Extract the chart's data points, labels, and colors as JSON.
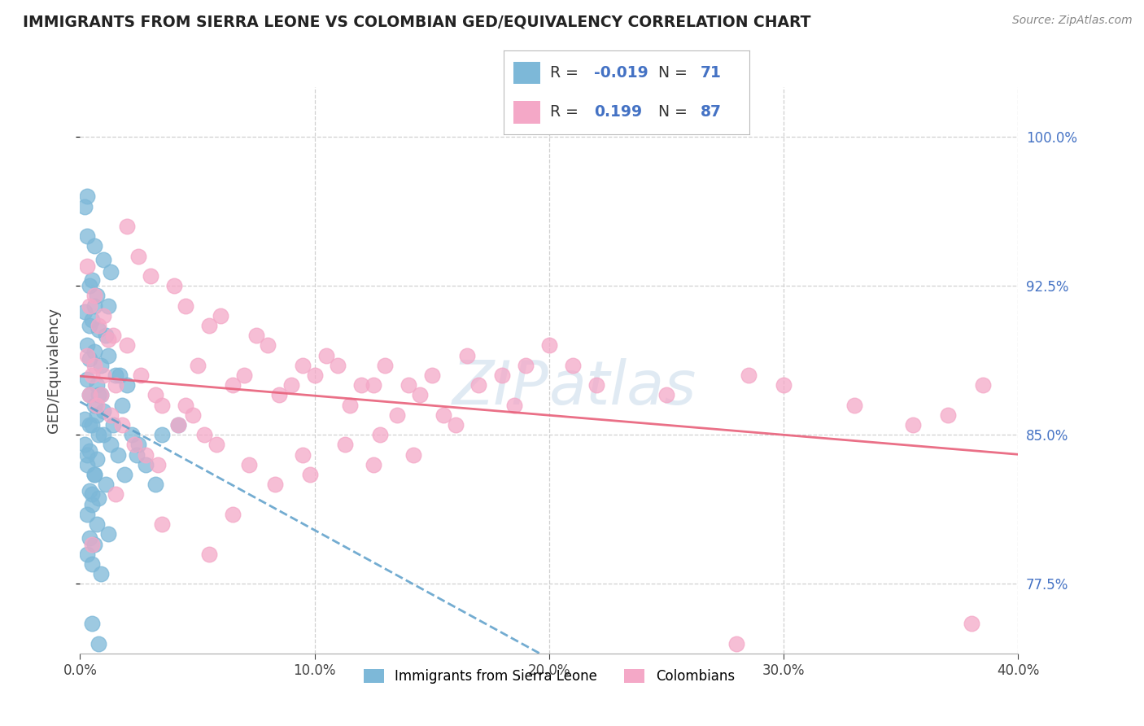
{
  "title": "IMMIGRANTS FROM SIERRA LEONE VS COLOMBIAN GED/EQUIVALENCY CORRELATION CHART",
  "source": "Source: ZipAtlas.com",
  "ylabel": "GED/Equivalency",
  "x_min": 0.0,
  "x_max": 40.0,
  "y_min": 74.0,
  "y_max": 102.5,
  "y_ticks": [
    77.5,
    85.0,
    92.5,
    100.0
  ],
  "y_tick_labels": [
    "77.5%",
    "85.0%",
    "92.5%",
    "100.0%"
  ],
  "x_ticks": [
    0,
    10,
    20,
    30,
    40
  ],
  "x_tick_labels": [
    "0.0%",
    "10.0%",
    "20.0%",
    "30.0%",
    "40.0%"
  ],
  "legend_bottom": [
    "Immigrants from Sierra Leone",
    "Colombians"
  ],
  "legend_r_n": [
    {
      "R": "-0.019",
      "N": "71",
      "color": "#7db8d8"
    },
    {
      "R": "0.199",
      "N": "87",
      "color": "#f4a8c7"
    }
  ],
  "sierra_leone_color": "#7db8d8",
  "colombian_color": "#f4a8c7",
  "trendline_sierra_color": "#5b9ec9",
  "trendline_colombian_color": "#e8607a",
  "background_color": "#ffffff",
  "grid_color": "#d0d0d0",
  "watermark": "ZIPatlas",
  "blue_value_color": "#4472c4",
  "title_color": "#222222",
  "axis_label_color": "#444444",
  "sierra_leone_points_x": [
    0.3,
    0.6,
    1.0,
    1.3,
    0.5,
    0.4,
    0.7,
    1.2,
    0.2,
    0.5,
    0.8,
    1.1,
    0.3,
    0.6,
    0.4,
    0.9,
    1.5,
    0.3,
    0.7,
    0.4,
    0.6,
    1.0,
    0.2,
    0.5,
    0.8,
    1.3,
    0.4,
    0.7,
    0.3,
    0.6,
    1.1,
    0.4,
    0.8,
    0.5,
    0.3,
    0.7,
    1.2,
    0.4,
    0.6,
    0.3,
    0.5,
    0.9,
    0.2,
    0.4,
    0.7,
    1.0,
    0.3,
    0.6,
    0.5,
    1.4,
    0.8,
    1.8,
    2.2,
    1.6,
    2.8,
    3.2,
    2.5,
    1.9,
    3.5,
    2.0,
    1.2,
    0.9,
    0.4,
    0.6,
    1.7,
    4.2,
    0.2,
    0.3,
    0.5,
    2.4,
    0.8
  ],
  "sierra_leone_points_y": [
    95.0,
    94.5,
    93.8,
    93.2,
    92.8,
    92.5,
    92.0,
    91.5,
    91.2,
    90.8,
    90.3,
    90.0,
    89.5,
    89.2,
    88.8,
    88.5,
    88.0,
    87.8,
    87.5,
    87.0,
    86.5,
    86.2,
    85.8,
    85.5,
    85.0,
    84.5,
    84.2,
    83.8,
    83.5,
    83.0,
    82.5,
    82.2,
    81.8,
    81.5,
    81.0,
    80.5,
    80.0,
    79.8,
    79.5,
    79.0,
    78.5,
    78.0,
    84.5,
    85.5,
    86.0,
    85.0,
    84.0,
    83.0,
    82.0,
    85.5,
    87.0,
    86.5,
    85.0,
    84.0,
    83.5,
    82.5,
    84.5,
    83.0,
    85.0,
    87.5,
    89.0,
    87.0,
    90.5,
    91.5,
    88.0,
    85.5,
    96.5,
    97.0,
    75.5,
    84.0,
    74.5
  ],
  "colombian_points_x": [
    0.4,
    0.8,
    1.2,
    0.3,
    0.6,
    1.0,
    1.5,
    0.4,
    0.7,
    2.0,
    2.5,
    3.0,
    4.0,
    4.5,
    5.5,
    6.0,
    7.5,
    8.0,
    9.5,
    10.5,
    11.0,
    12.5,
    13.0,
    14.5,
    15.0,
    16.5,
    18.0,
    20.0,
    3.5,
    5.0,
    6.5,
    7.0,
    8.5,
    9.0,
    10.0,
    11.5,
    12.0,
    13.5,
    14.0,
    15.5,
    17.0,
    19.0,
    21.0,
    0.5,
    0.9,
    1.3,
    1.8,
    2.3,
    2.8,
    3.3,
    4.2,
    4.8,
    5.3,
    0.3,
    0.6,
    1.0,
    1.4,
    2.0,
    2.6,
    3.2,
    4.5,
    5.8,
    7.2,
    8.3,
    9.8,
    11.3,
    12.8,
    14.2,
    16.0,
    18.5,
    22.0,
    25.0,
    28.5,
    30.0,
    33.0,
    35.5,
    37.0,
    38.5,
    0.5,
    1.5,
    3.5,
    5.5,
    6.5,
    9.5,
    12.5,
    28.0,
    38.0
  ],
  "colombian_points_y": [
    91.5,
    90.5,
    89.8,
    89.0,
    88.5,
    88.0,
    87.5,
    87.0,
    86.5,
    95.5,
    94.0,
    93.0,
    92.5,
    91.5,
    90.5,
    91.0,
    90.0,
    89.5,
    88.5,
    89.0,
    88.5,
    87.5,
    88.5,
    87.0,
    88.0,
    89.0,
    88.0,
    89.5,
    86.5,
    88.5,
    87.5,
    88.0,
    87.0,
    87.5,
    88.0,
    86.5,
    87.5,
    86.0,
    87.5,
    86.0,
    87.5,
    88.5,
    88.5,
    88.0,
    87.0,
    86.0,
    85.5,
    84.5,
    84.0,
    83.5,
    85.5,
    86.0,
    85.0,
    93.5,
    92.0,
    91.0,
    90.0,
    89.5,
    88.0,
    87.0,
    86.5,
    84.5,
    83.5,
    82.5,
    83.0,
    84.5,
    85.0,
    84.0,
    85.5,
    86.5,
    87.5,
    87.0,
    88.0,
    87.5,
    86.5,
    85.5,
    86.0,
    87.5,
    79.5,
    82.0,
    80.5,
    79.0,
    81.0,
    84.0,
    83.5,
    74.5,
    75.5
  ]
}
